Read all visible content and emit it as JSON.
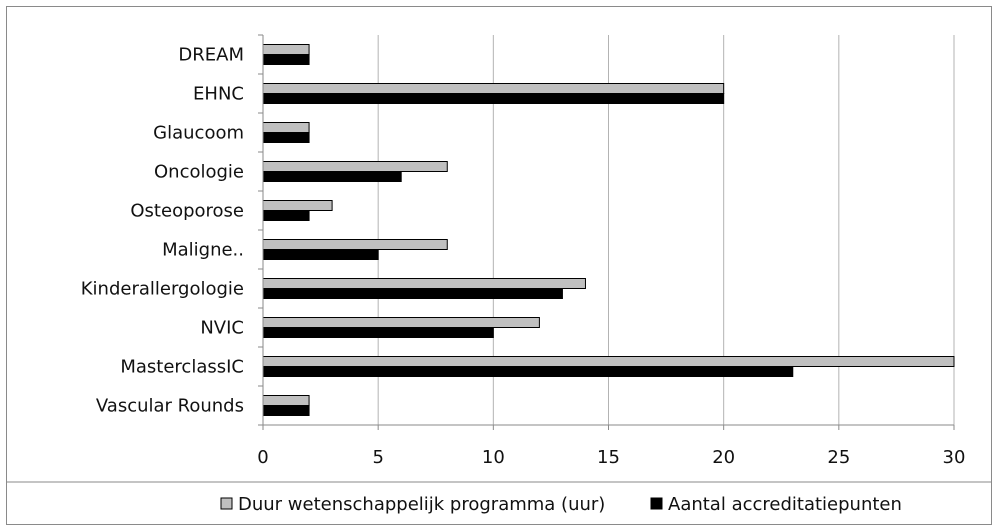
{
  "chart_data": {
    "type": "bar",
    "orientation": "horizontal",
    "categories": [
      "DREAM",
      "EHNC",
      "Glaucoom",
      "Oncologie",
      "Osteoporose",
      "Maligne..",
      "Kinderallergologie",
      "NVIC",
      "MasterclassIC",
      "Vascular Rounds"
    ],
    "series": [
      {
        "name": "Duur wetenschappelijk programma (uur)",
        "color": "#c0c0c0",
        "values": [
          2,
          20,
          2,
          8,
          3,
          8,
          14,
          12,
          30,
          2
        ]
      },
      {
        "name": "Aantal accreditatiepunten",
        "color": "#000000",
        "values": [
          2,
          20,
          2,
          6,
          2,
          5,
          13,
          10,
          23,
          2
        ]
      }
    ],
    "x_ticks": [
      "0",
      "5",
      "10",
      "15",
      "20",
      "25",
      "30"
    ],
    "xlim": [
      0,
      30
    ],
    "grid": "vertical",
    "legend_position": "bottom"
  }
}
